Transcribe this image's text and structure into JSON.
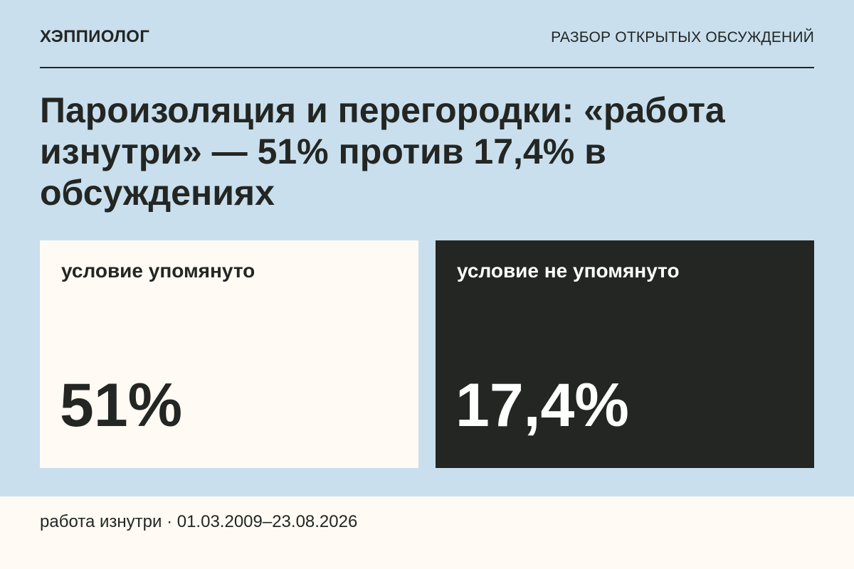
{
  "header": {
    "brand": "ХЭППИОЛОГ",
    "section": "РАЗБОР ОТКРЫТЫХ ОБСУЖДЕНИЙ"
  },
  "headline": "Пароизоляция и перегородки: «работа изнутри» — 51% против 17,4% в обсуждениях",
  "cards": [
    {
      "label": "условие упомянуто",
      "value": "51%",
      "percent": 51,
      "background": "#fffbf4",
      "text_color": "#232622"
    },
    {
      "label": "условие не упомянуто",
      "value": "17,4%",
      "percent": 17.4,
      "background": "#232622",
      "text_color": "#ffffff"
    }
  ],
  "footer": {
    "text": "работа изнутри · 01.03.2009–23.08.2026"
  },
  "colors": {
    "page_background": "#c9dfee",
    "ink": "#232622",
    "paper": "#fffbf4"
  }
}
